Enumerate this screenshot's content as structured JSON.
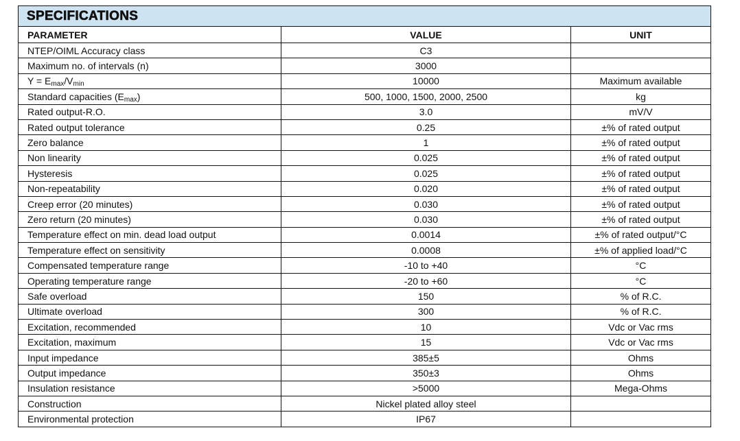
{
  "title": "SPECIFICATIONS",
  "columns": {
    "parameter": "PARAMETER",
    "value": "VALUE",
    "unit": "UNIT"
  },
  "rows": [
    {
      "parameter": [
        {
          "t": "NTEP/OIML Accuracy class"
        }
      ],
      "value": "C3",
      "unit": ""
    },
    {
      "parameter": [
        {
          "t": "Maximum no. of intervals (n)"
        }
      ],
      "value": "3000",
      "unit": ""
    },
    {
      "parameter": [
        {
          "t": "Y = E"
        },
        {
          "sub": "max"
        },
        {
          "t": "/V"
        },
        {
          "sub": "min"
        }
      ],
      "value": "10000",
      "unit": "Maximum available"
    },
    {
      "parameter": [
        {
          "t": "Standard capacities (E"
        },
        {
          "sub": "max"
        },
        {
          "t": ")"
        }
      ],
      "value": "500, 1000, 1500, 2000, 2500",
      "unit": "kg"
    },
    {
      "parameter": [
        {
          "t": "Rated output-R.O."
        }
      ],
      "value": "3.0",
      "unit": "mV/V"
    },
    {
      "parameter": [
        {
          "t": "Rated output tolerance"
        }
      ],
      "value": "0.25",
      "unit": "±% of rated output"
    },
    {
      "parameter": [
        {
          "t": "Zero balance"
        }
      ],
      "value": "1",
      "unit": "±% of rated output"
    },
    {
      "parameter": [
        {
          "t": "Non linearity"
        }
      ],
      "value": "0.025",
      "unit": "±% of rated output"
    },
    {
      "parameter": [
        {
          "t": "Hysteresis"
        }
      ],
      "value": "0.025",
      "unit": "±% of rated output"
    },
    {
      "parameter": [
        {
          "t": "Non-repeatability"
        }
      ],
      "value": "0.020",
      "unit": "±% of rated output"
    },
    {
      "parameter": [
        {
          "t": "Creep error (20 minutes)"
        }
      ],
      "value": "0.030",
      "unit": "±% of rated output"
    },
    {
      "parameter": [
        {
          "t": "Zero return (20 minutes)"
        }
      ],
      "value": "0.030",
      "unit": "±% of rated output"
    },
    {
      "parameter": [
        {
          "t": "Temperature effect on min. dead load output"
        }
      ],
      "value": "0.0014",
      "unit": "±% of rated output/°C"
    },
    {
      "parameter": [
        {
          "t": "Temperature effect on sensitivity"
        }
      ],
      "value": "0.0008",
      "unit": "±% of applied load/°C"
    },
    {
      "parameter": [
        {
          "t": "Compensated temperature range"
        }
      ],
      "value": "-10 to +40",
      "unit": "°C"
    },
    {
      "parameter": [
        {
          "t": "Operating temperature range"
        }
      ],
      "value": "-20 to +60",
      "unit": "°C"
    },
    {
      "parameter": [
        {
          "t": "Safe overload"
        }
      ],
      "value": "150",
      "unit": "% of R.C."
    },
    {
      "parameter": [
        {
          "t": "Ultimate overload"
        }
      ],
      "value": "300",
      "unit": "% of R.C."
    },
    {
      "parameter": [
        {
          "t": "Excitation, recommended"
        }
      ],
      "value": "10",
      "unit": "Vdc or Vac rms"
    },
    {
      "parameter": [
        {
          "t": "Excitation, maximum"
        }
      ],
      "value": "15",
      "unit": "Vdc or Vac rms"
    },
    {
      "parameter": [
        {
          "t": "Input impedance"
        }
      ],
      "value": "385±5",
      "unit": "Ohms"
    },
    {
      "parameter": [
        {
          "t": "Output impedance"
        }
      ],
      "value": "350±3",
      "unit": "Ohms"
    },
    {
      "parameter": [
        {
          "t": "Insulation resistance"
        }
      ],
      "value": ">5000",
      "unit": "Mega-Ohms"
    },
    {
      "parameter": [
        {
          "t": "Construction"
        }
      ],
      "value": "Nickel plated alloy steel",
      "unit": ""
    },
    {
      "parameter": [
        {
          "t": "Environmental protection"
        }
      ],
      "value": "IP67",
      "unit": ""
    }
  ],
  "colors": {
    "title_bg": "#cde3f1",
    "border": "#111111"
  }
}
